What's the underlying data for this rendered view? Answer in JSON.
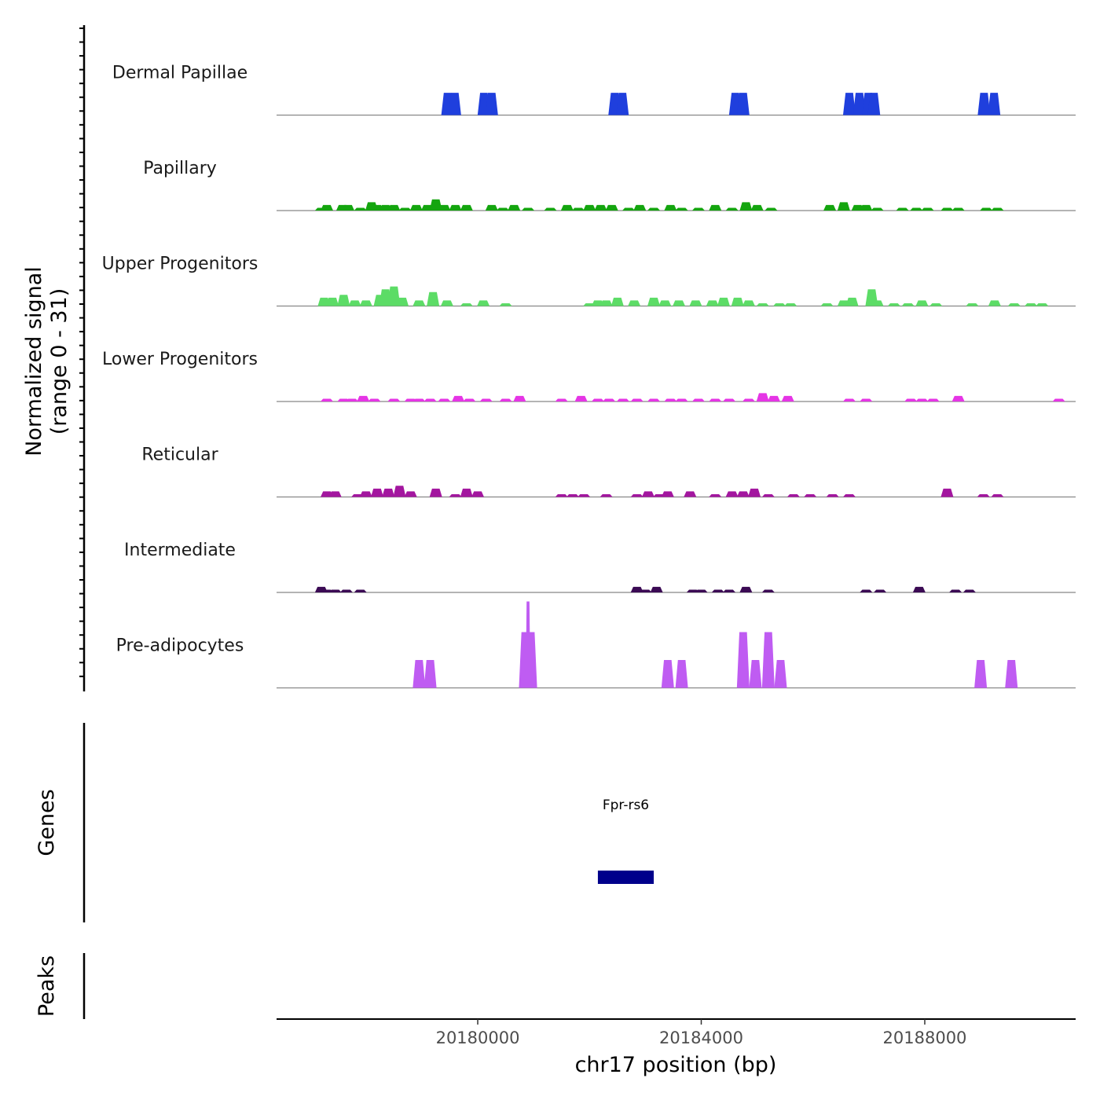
{
  "chart_data": {
    "type": "area",
    "title": "",
    "y_axis_label": "Normalized signal",
    "y_axis_range_label": "(range 0 - 31)",
    "ylim": [
      0,
      31
    ],
    "chromosome": "chr17",
    "xlabel": "chr17 position (bp)",
    "xlim": [
      20176400,
      20190700
    ],
    "x_ticks": [
      20180000,
      20184000,
      20188000
    ],
    "x_tick_labels": [
      "20180000",
      "20184000",
      "20188000"
    ],
    "tracks": [
      {
        "name": "Dermal Papillae",
        "color": "#1f3fdd",
        "peaks": [
          [
            20179460,
            8
          ],
          [
            20179590,
            8
          ],
          [
            20180110,
            8
          ],
          [
            20180250,
            8
          ],
          [
            20182450,
            8
          ],
          [
            20182590,
            8
          ],
          [
            20184610,
            8
          ],
          [
            20184750,
            8
          ],
          [
            20186650,
            8
          ],
          [
            20186830,
            8
          ],
          [
            20186990,
            8
          ],
          [
            20187090,
            8
          ],
          [
            20189060,
            8
          ],
          [
            20189240,
            8
          ]
        ]
      },
      {
        "name": "Papillary",
        "color": "#14a50f",
        "peaks": [
          [
            20177200,
            1
          ],
          [
            20177300,
            2
          ],
          [
            20177580,
            2
          ],
          [
            20177680,
            2
          ],
          [
            20177900,
            1
          ],
          [
            20178100,
            3
          ],
          [
            20178200,
            2
          ],
          [
            20178350,
            2
          ],
          [
            20178500,
            2
          ],
          [
            20178700,
            1
          ],
          [
            20178900,
            2
          ],
          [
            20179100,
            2
          ],
          [
            20179250,
            4
          ],
          [
            20179400,
            2
          ],
          [
            20179600,
            2
          ],
          [
            20179800,
            2
          ],
          [
            20180250,
            2
          ],
          [
            20180450,
            1
          ],
          [
            20180650,
            2
          ],
          [
            20180900,
            1
          ],
          [
            20181300,
            1
          ],
          [
            20181600,
            2
          ],
          [
            20181800,
            1
          ],
          [
            20182000,
            2
          ],
          [
            20182200,
            2
          ],
          [
            20182400,
            2
          ],
          [
            20182700,
            1
          ],
          [
            20182900,
            2
          ],
          [
            20183150,
            1
          ],
          [
            20183450,
            2
          ],
          [
            20183650,
            1
          ],
          [
            20183950,
            1
          ],
          [
            20184250,
            2
          ],
          [
            20184550,
            1
          ],
          [
            20184800,
            3
          ],
          [
            20185000,
            2
          ],
          [
            20185250,
            1
          ],
          [
            20186300,
            2
          ],
          [
            20186550,
            3
          ],
          [
            20186800,
            2
          ],
          [
            20186950,
            2
          ],
          [
            20187150,
            1
          ],
          [
            20187600,
            1
          ],
          [
            20187850,
            1
          ],
          [
            20188050,
            1
          ],
          [
            20188400,
            1
          ],
          [
            20188600,
            1
          ],
          [
            20189100,
            1
          ],
          [
            20189300,
            1
          ]
        ]
      },
      {
        "name": "Upper Progenitors",
        "color": "#5cdc66",
        "peaks": [
          [
            20177250,
            3
          ],
          [
            20177400,
            3
          ],
          [
            20177600,
            4
          ],
          [
            20177800,
            2
          ],
          [
            20178000,
            2
          ],
          [
            20178250,
            4
          ],
          [
            20178350,
            6
          ],
          [
            20178500,
            7
          ],
          [
            20178650,
            3
          ],
          [
            20178950,
            2
          ],
          [
            20179200,
            5
          ],
          [
            20179450,
            2
          ],
          [
            20179800,
            1
          ],
          [
            20180100,
            2
          ],
          [
            20180500,
            1
          ],
          [
            20182000,
            1
          ],
          [
            20182150,
            2
          ],
          [
            20182300,
            2
          ],
          [
            20182500,
            3
          ],
          [
            20182800,
            2
          ],
          [
            20183150,
            3
          ],
          [
            20183350,
            2
          ],
          [
            20183600,
            2
          ],
          [
            20183900,
            2
          ],
          [
            20184200,
            2
          ],
          [
            20184400,
            3
          ],
          [
            20184650,
            3
          ],
          [
            20184850,
            2
          ],
          [
            20185100,
            1
          ],
          [
            20185400,
            1
          ],
          [
            20185600,
            1
          ],
          [
            20186250,
            1
          ],
          [
            20186550,
            2
          ],
          [
            20186700,
            3
          ],
          [
            20187050,
            6
          ],
          [
            20187150,
            2
          ],
          [
            20187450,
            1
          ],
          [
            20187700,
            1
          ],
          [
            20187950,
            2
          ],
          [
            20188200,
            1
          ],
          [
            20188850,
            1
          ],
          [
            20189250,
            2
          ],
          [
            20189600,
            1
          ],
          [
            20189900,
            1
          ],
          [
            20190100,
            1
          ]
        ]
      },
      {
        "name": "Lower Progenitors",
        "color": "#e535e5",
        "peaks": [
          [
            20177300,
            1
          ],
          [
            20177600,
            1
          ],
          [
            20177750,
            1
          ],
          [
            20177950,
            2
          ],
          [
            20178150,
            1
          ],
          [
            20178500,
            1
          ],
          [
            20178800,
            1
          ],
          [
            20178950,
            1
          ],
          [
            20179150,
            1
          ],
          [
            20179400,
            1
          ],
          [
            20179650,
            2
          ],
          [
            20179850,
            1
          ],
          [
            20180150,
            1
          ],
          [
            20180500,
            1
          ],
          [
            20180750,
            2
          ],
          [
            20181500,
            1
          ],
          [
            20181850,
            2
          ],
          [
            20182150,
            1
          ],
          [
            20182350,
            1
          ],
          [
            20182600,
            1
          ],
          [
            20182850,
            1
          ],
          [
            20183150,
            1
          ],
          [
            20183450,
            1
          ],
          [
            20183650,
            1
          ],
          [
            20183950,
            1
          ],
          [
            20184250,
            1
          ],
          [
            20184500,
            1
          ],
          [
            20184850,
            1
          ],
          [
            20185100,
            3
          ],
          [
            20185300,
            2
          ],
          [
            20185550,
            2
          ],
          [
            20186650,
            1
          ],
          [
            20186950,
            1
          ],
          [
            20187750,
            1
          ],
          [
            20187950,
            1
          ],
          [
            20188150,
            1
          ],
          [
            20188600,
            2
          ],
          [
            20190400,
            1
          ]
        ]
      },
      {
        "name": "Reticular",
        "color": "#a3169f",
        "peaks": [
          [
            20177300,
            2
          ],
          [
            20177450,
            2
          ],
          [
            20177850,
            1
          ],
          [
            20178000,
            2
          ],
          [
            20178200,
            3
          ],
          [
            20178400,
            3
          ],
          [
            20178600,
            4
          ],
          [
            20178800,
            2
          ],
          [
            20179250,
            3
          ],
          [
            20179600,
            1
          ],
          [
            20179800,
            3
          ],
          [
            20180000,
            2
          ],
          [
            20181500,
            1
          ],
          [
            20181700,
            1
          ],
          [
            20181900,
            1
          ],
          [
            20182300,
            1
          ],
          [
            20182850,
            1
          ],
          [
            20183050,
            2
          ],
          [
            20183250,
            1
          ],
          [
            20183400,
            2
          ],
          [
            20183800,
            2
          ],
          [
            20184250,
            1
          ],
          [
            20184550,
            2
          ],
          [
            20184750,
            2
          ],
          [
            20184950,
            3
          ],
          [
            20185200,
            1
          ],
          [
            20185650,
            1
          ],
          [
            20185950,
            1
          ],
          [
            20186350,
            1
          ],
          [
            20186650,
            1
          ],
          [
            20188400,
            3
          ],
          [
            20189050,
            1
          ],
          [
            20189300,
            1
          ]
        ]
      },
      {
        "name": "Intermediate",
        "color": "#3b0a54",
        "peaks": [
          [
            20177200,
            2
          ],
          [
            20177300,
            1
          ],
          [
            20177450,
            1
          ],
          [
            20177650,
            1
          ],
          [
            20177900,
            1
          ],
          [
            20182850,
            2
          ],
          [
            20183000,
            1
          ],
          [
            20183200,
            2
          ],
          [
            20183850,
            1
          ],
          [
            20184000,
            1
          ],
          [
            20184300,
            1
          ],
          [
            20184500,
            1
          ],
          [
            20184800,
            2
          ],
          [
            20185200,
            1
          ],
          [
            20186950,
            1
          ],
          [
            20187200,
            1
          ],
          [
            20187900,
            2
          ],
          [
            20188550,
            1
          ],
          [
            20188800,
            1
          ]
        ]
      },
      {
        "name": "Pre-adipocytes",
        "color": "#bf5cf2",
        "peaks": [
          [
            20178950,
            10
          ],
          [
            20179150,
            10
          ],
          [
            20180850,
            20
          ],
          [
            20180900,
            31
          ],
          [
            20180950,
            20
          ],
          [
            20183400,
            10
          ],
          [
            20183650,
            10
          ],
          [
            20184750,
            20
          ],
          [
            20184970,
            10
          ],
          [
            20185200,
            20
          ],
          [
            20185420,
            10
          ],
          [
            20189000,
            10
          ],
          [
            20189550,
            10
          ]
        ]
      }
    ],
    "genes_label": "Genes",
    "genes": [
      {
        "name": "Fpr-rs6",
        "start": 20182150,
        "end": 20183150,
        "color": "#00008b"
      }
    ],
    "peaks_label": "Peaks",
    "peak_regions": []
  }
}
